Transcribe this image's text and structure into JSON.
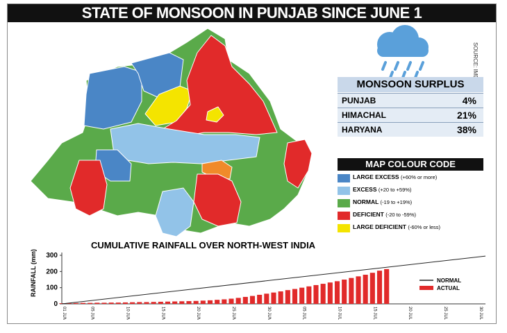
{
  "title": "STATE OF MONSOON IN PUNJAB SINCE JUNE 1",
  "source": "SOURCE: IMD",
  "surplus": {
    "title": "MONSOON SURPLUS",
    "rows": [
      {
        "state": "PUNJAB",
        "value": "4%"
      },
      {
        "state": "HIMACHAL",
        "value": "21%"
      },
      {
        "state": "HARYANA",
        "value": "38%"
      }
    ]
  },
  "legend": {
    "title": "MAP COLOUR CODE",
    "items": [
      {
        "label": "LARGE EXCESS",
        "range": "(+60% or more)",
        "color": "#4a86c6"
      },
      {
        "label": "EXCESS",
        "range": "(+20 to +59%)",
        "color": "#92c3e8"
      },
      {
        "label": "NORMAL",
        "range": "(-19 to +19%)",
        "color": "#5aaa4a"
      },
      {
        "label": "DEFICIENT",
        "range": "(-20 to -59%)",
        "color": "#e12a2a"
      },
      {
        "label": "LARGE DEFICIENT",
        "range": "(-60% or less)",
        "color": "#f4e400"
      }
    ]
  },
  "colors": {
    "excess_orange": "#f08a2a",
    "cloud": "#5aa0da"
  },
  "chart_data": {
    "type": "bar",
    "title": "CUMULATIVE RAINFALL OVER NORTH-WEST INDIA",
    "ylabel": "RAINFALL (mm)",
    "ylim": [
      0,
      300
    ],
    "yticks": [
      0,
      100,
      200,
      300
    ],
    "xtick_labels": [
      "01 JUN",
      "05 JUN",
      "10 JUN",
      "15 JUN",
      "20 JUN",
      "25 JUN",
      "30 JUN",
      "05 JUL",
      "10 JUL",
      "15 JUL",
      "20 JUL",
      "25 JUL",
      "30 JUL"
    ],
    "normal": {
      "name": "NORMAL",
      "start": 0,
      "end": 295,
      "days": 61
    },
    "actual": {
      "name": "ACTUAL",
      "values": [
        4,
        5,
        5,
        6,
        6,
        7,
        7,
        8,
        8,
        9,
        10,
        11,
        11,
        12,
        13,
        14,
        15,
        16,
        17,
        18,
        20,
        22,
        25,
        28,
        32,
        37,
        43,
        49,
        56,
        63,
        70,
        77,
        85,
        92,
        100,
        108,
        116,
        124,
        132,
        140,
        150,
        160,
        170,
        180,
        192,
        205,
        215
      ]
    }
  }
}
